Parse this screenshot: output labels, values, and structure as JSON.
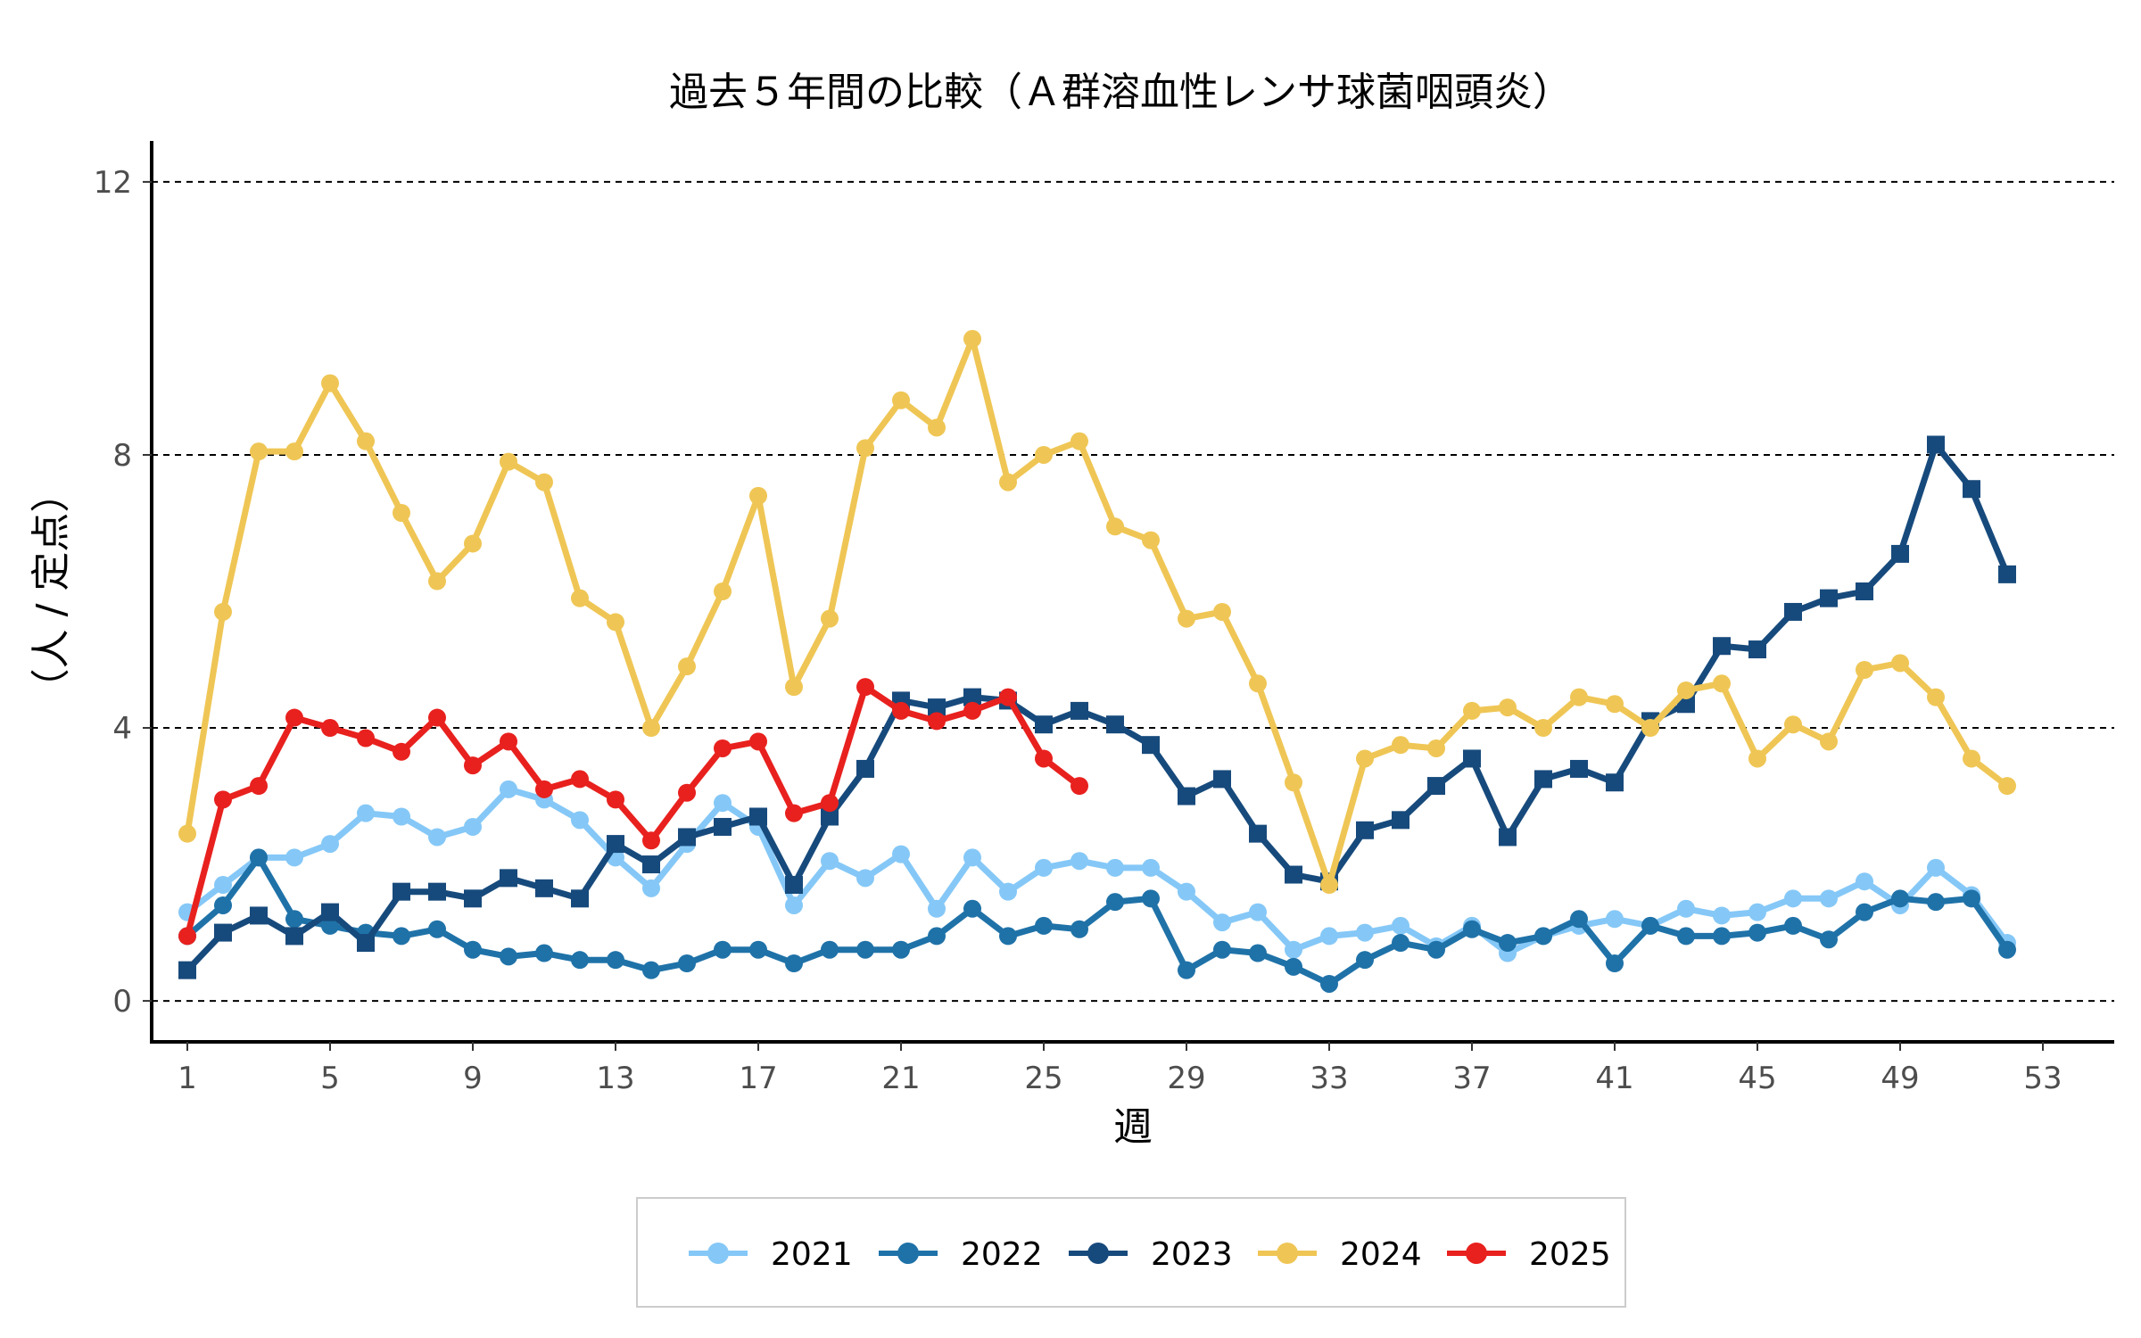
{
  "chart_data": {
    "type": "line",
    "title": "過去５年間の比較（Ａ群溶血性レンサ球菌咽頭炎）",
    "xlabel": "週",
    "ylabel": "（人 / 定点）",
    "xlim": [
      0,
      55
    ],
    "ylim": [
      -0.6,
      12.6
    ],
    "x_ticks": [
      1,
      5,
      9,
      13,
      17,
      21,
      25,
      29,
      33,
      37,
      41,
      45,
      49,
      53
    ],
    "y_ticks": [
      0,
      4,
      8,
      12
    ],
    "grid": "horizontal dashed",
    "legend_position": "bottom",
    "series": [
      {
        "name": "2021",
        "color": "#85c8f7",
        "marker": "circle",
        "x": [
          1,
          2,
          3,
          4,
          5,
          6,
          7,
          8,
          9,
          10,
          11,
          12,
          13,
          14,
          15,
          16,
          17,
          18,
          19,
          20,
          21,
          22,
          23,
          24,
          25,
          26,
          27,
          28,
          29,
          30,
          31,
          32,
          33,
          34,
          35,
          36,
          37,
          38,
          39,
          40,
          41,
          42,
          43,
          44,
          45,
          46,
          47,
          48,
          49,
          50,
          51,
          52
        ],
        "values": [
          1.3,
          1.7,
          2.1,
          2.1,
          2.3,
          2.75,
          2.7,
          2.4,
          2.55,
          3.1,
          2.95,
          2.65,
          2.1,
          1.65,
          2.3,
          2.9,
          2.55,
          1.4,
          2.05,
          1.8,
          2.15,
          1.35,
          2.1,
          1.6,
          1.95,
          2.05,
          1.95,
          1.95,
          1.6,
          1.15,
          1.3,
          0.75,
          0.95,
          1.0,
          1.1,
          0.8,
          1.1,
          0.7,
          0.95,
          1.1,
          1.2,
          1.1,
          1.35,
          1.25,
          1.3,
          1.5,
          1.5,
          1.75,
          1.4,
          1.95,
          1.55,
          0.85
        ]
      },
      {
        "name": "2022",
        "color": "#1f72a8",
        "marker": "circle",
        "x": [
          1,
          2,
          3,
          4,
          5,
          6,
          7,
          8,
          9,
          10,
          11,
          12,
          13,
          14,
          15,
          16,
          17,
          18,
          19,
          20,
          21,
          22,
          23,
          24,
          25,
          26,
          27,
          28,
          29,
          30,
          31,
          32,
          33,
          34,
          35,
          36,
          37,
          38,
          39,
          40,
          41,
          42,
          43,
          44,
          45,
          46,
          47,
          48,
          49,
          50,
          51,
          52
        ],
        "values": [
          0.95,
          1.4,
          2.1,
          1.2,
          1.1,
          1.0,
          0.95,
          1.05,
          0.75,
          0.65,
          0.7,
          0.6,
          0.6,
          0.45,
          0.55,
          0.75,
          0.75,
          0.55,
          0.75,
          0.75,
          0.75,
          0.95,
          1.35,
          0.95,
          1.1,
          1.05,
          1.45,
          1.5,
          0.45,
          0.75,
          0.7,
          0.5,
          0.25,
          0.6,
          0.85,
          0.75,
          1.05,
          0.85,
          0.95,
          1.2,
          0.55,
          1.1,
          0.95,
          0.95,
          1.0,
          1.1,
          0.9,
          1.3,
          1.5,
          1.45,
          1.5,
          0.75
        ]
      },
      {
        "name": "2023",
        "color": "#174a7c",
        "marker": "square",
        "x": [
          1,
          2,
          3,
          4,
          5,
          6,
          7,
          8,
          9,
          10,
          11,
          12,
          13,
          14,
          15,
          16,
          17,
          18,
          19,
          20,
          21,
          22,
          23,
          24,
          25,
          26,
          27,
          28,
          29,
          30,
          31,
          32,
          33,
          34,
          35,
          36,
          37,
          38,
          39,
          40,
          41,
          42,
          43,
          44,
          45,
          46,
          47,
          48,
          49,
          50,
          51,
          52
        ],
        "values": [
          0.45,
          1.0,
          1.25,
          0.95,
          1.3,
          0.85,
          1.6,
          1.6,
          1.5,
          1.8,
          1.65,
          1.5,
          2.3,
          2.0,
          2.4,
          2.55,
          2.7,
          1.7,
          2.7,
          3.4,
          4.4,
          4.3,
          4.45,
          4.4,
          4.05,
          4.25,
          4.05,
          3.75,
          3.0,
          3.25,
          2.45,
          1.85,
          1.75,
          2.5,
          2.65,
          3.15,
          3.55,
          2.4,
          3.25,
          3.4,
          3.2,
          4.1,
          4.35,
          5.2,
          5.15,
          5.7,
          5.9,
          6.0,
          6.55,
          8.15,
          7.5,
          6.25
        ]
      },
      {
        "name": "2024",
        "color": "#efc655",
        "marker": "circle",
        "x": [
          1,
          2,
          3,
          4,
          5,
          6,
          7,
          8,
          9,
          10,
          11,
          12,
          13,
          14,
          15,
          16,
          17,
          18,
          19,
          20,
          21,
          22,
          23,
          24,
          25,
          26,
          27,
          28,
          29,
          30,
          31,
          32,
          33,
          34,
          35,
          36,
          37,
          38,
          39,
          40,
          41,
          42,
          43,
          44,
          45,
          46,
          47,
          48,
          49,
          50,
          51,
          52
        ],
        "values": [
          2.45,
          5.7,
          8.05,
          8.05,
          9.05,
          8.2,
          7.15,
          6.15,
          6.7,
          7.9,
          7.6,
          5.9,
          5.55,
          4.0,
          4.9,
          6.0,
          7.4,
          4.6,
          5.6,
          8.1,
          8.8,
          8.4,
          9.7,
          7.6,
          8.0,
          8.2,
          6.95,
          6.75,
          5.6,
          5.7,
          4.65,
          3.2,
          1.7,
          3.55,
          3.75,
          3.7,
          4.25,
          4.3,
          4.0,
          4.45,
          4.35,
          4.0,
          4.55,
          4.65,
          3.55,
          4.05,
          3.8,
          4.85,
          4.95,
          4.45,
          3.55,
          3.15
        ]
      },
      {
        "name": "2025",
        "color": "#e8211e",
        "marker": "circle",
        "x": [
          1,
          2,
          3,
          4,
          5,
          6,
          7,
          8,
          9,
          10,
          11,
          12,
          13,
          14,
          15,
          16,
          17,
          18,
          19,
          20,
          21,
          22,
          23,
          24,
          25,
          26
        ],
        "values": [
          0.95,
          2.95,
          3.15,
          4.15,
          4.0,
          3.85,
          3.65,
          4.15,
          3.45,
          3.8,
          3.1,
          3.25,
          2.95,
          2.35,
          3.05,
          3.7,
          3.8,
          2.75,
          2.9,
          4.6,
          4.25,
          4.1,
          4.25,
          4.45,
          3.55,
          3.15
        ]
      }
    ]
  }
}
